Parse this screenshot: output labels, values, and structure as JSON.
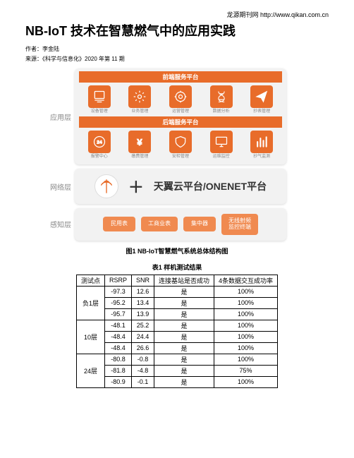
{
  "header": {
    "site": "龙源期刊网  http://www.qikan.com.cn"
  },
  "title": "NB-IoT 技术在智慧燃气中的应用实践",
  "meta": {
    "author_label": "作者：李金陆",
    "source_label": "来源：《科学与信息化》2020 年第 11 期"
  },
  "diagram": {
    "colors": {
      "accent": "#e86c2a",
      "accent_light": "#f08a50",
      "tier_bg": "#f2f2f2",
      "label_grey": "#888888"
    },
    "tiers": {
      "app": {
        "label": "应用层",
        "front_bar": "前端服务平台",
        "back_bar": "后端服务平台",
        "front_icons": [
          {
            "name": "device-mgmt",
            "label": "设备管理"
          },
          {
            "name": "settings",
            "label": "业务管理"
          },
          {
            "name": "gear-run",
            "label": "运营管理"
          },
          {
            "name": "dna",
            "label": "数据分析"
          },
          {
            "name": "send",
            "label": "抄表管理"
          }
        ],
        "back_icons": [
          {
            "name": "support-24",
            "label": "报警中心"
          },
          {
            "name": "yen",
            "label": "缴费管理"
          },
          {
            "name": "safety",
            "label": "安检管理"
          },
          {
            "name": "monitor",
            "label": "运维监控"
          },
          {
            "name": "bars",
            "label": "抄气监测"
          }
        ]
      },
      "net": {
        "label": "网络层",
        "platform": "天翼云平台/ONENET平台"
      },
      "sense": {
        "label": "感知层",
        "items": [
          "民用表",
          "工商业表",
          "集中器",
          "无线射频\n监控终端"
        ]
      }
    },
    "caption": "图1   NB-IoT智慧燃气系统总体结构图"
  },
  "table": {
    "caption": "表1   样机测试结果",
    "columns": [
      "测试点",
      "RSRP",
      "SNR",
      "连接基站是否成功",
      "4条数据交互成功率"
    ],
    "groups": [
      {
        "point": "负1层",
        "rows": [
          {
            "rsrp": "-97.3",
            "snr": "12.6",
            "conn": "是",
            "rate": "100%"
          },
          {
            "rsrp": "-95.2",
            "snr": "13.4",
            "conn": "是",
            "rate": "100%"
          },
          {
            "rsrp": "-95.7",
            "snr": "13.9",
            "conn": "是",
            "rate": "100%"
          }
        ]
      },
      {
        "point": "10层",
        "rows": [
          {
            "rsrp": "-48.1",
            "snr": "25.2",
            "conn": "是",
            "rate": "100%"
          },
          {
            "rsrp": "-48.4",
            "snr": "24.4",
            "conn": "是",
            "rate": "100%"
          },
          {
            "rsrp": "-48.4",
            "snr": "26.6",
            "conn": "是",
            "rate": "100%"
          }
        ]
      },
      {
        "point": "24层",
        "rows": [
          {
            "rsrp": "-80.8",
            "snr": "-0.8",
            "conn": "是",
            "rate": "100%"
          },
          {
            "rsrp": "-81.8",
            "snr": "-4.8",
            "conn": "是",
            "rate": "75%"
          },
          {
            "rsrp": "-80.9",
            "snr": "-0.1",
            "conn": "是",
            "rate": "100%"
          }
        ]
      }
    ]
  }
}
